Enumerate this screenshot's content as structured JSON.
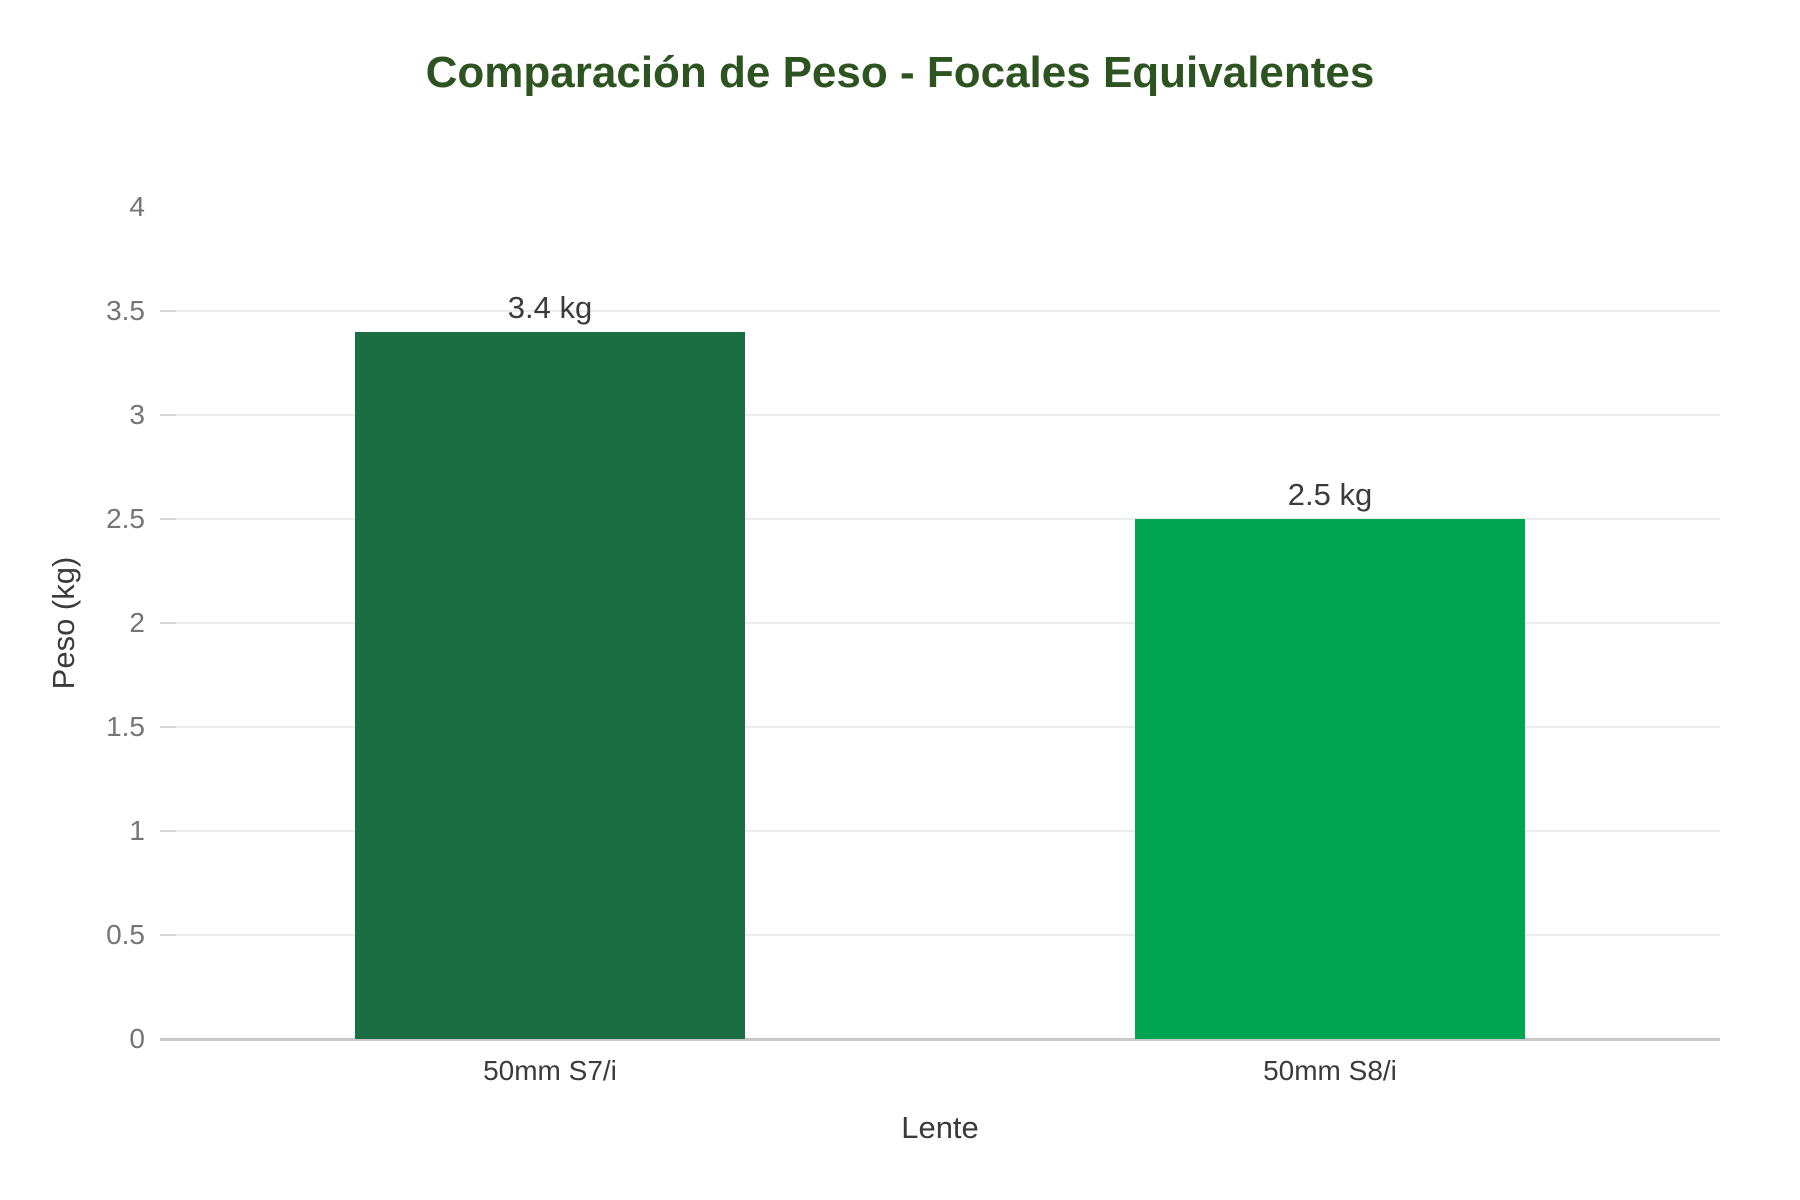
{
  "chart_data": {
    "type": "bar",
    "title": "Comparación de Peso - Focales Equivalentes",
    "categories": [
      "50mm S7/i",
      "50mm S8/i"
    ],
    "values": [
      3.4,
      2.5
    ],
    "value_labels": [
      "3.4 kg",
      "2.5 kg"
    ],
    "bar_colors": [
      "#1b6e44",
      "#00a551"
    ],
    "xlabel": "Lente",
    "ylabel": "Peso (kg)",
    "ylim": [
      0,
      4
    ],
    "yticks": [
      0,
      0.5,
      1,
      1.5,
      2,
      2.5,
      3,
      3.5,
      4
    ],
    "ytick_labels": [
      "0",
      "0.5",
      "1",
      "1.5",
      "2",
      "2.5",
      "3",
      "3.5",
      "4"
    ],
    "grid": true,
    "legend": false
  },
  "colors": {
    "title": "#2d5420",
    "axis_label": "#3b3b3b",
    "value_label": "#3b3b3b",
    "tick_label": "#757575",
    "gridline": "#ececec",
    "tick_mark": "#d4d4d4",
    "axis_line": "#c9c9c9",
    "background": "#ffffff"
  }
}
